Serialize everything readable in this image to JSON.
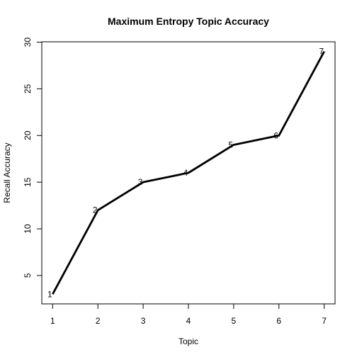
{
  "chart_data": {
    "type": "line",
    "title": "Maximum Entropy Topic Accuracy",
    "xlabel": "Topic",
    "ylabel": "Recall Accuracy",
    "x": [
      1,
      2,
      3,
      4,
      5,
      6,
      7
    ],
    "values": [
      3,
      12,
      15,
      16,
      19,
      20,
      29
    ],
    "point_labels": [
      "1",
      "2",
      "3",
      "4",
      "5",
      "6",
      "7"
    ],
    "xticks": [
      1,
      2,
      3,
      4,
      5,
      6,
      7
    ],
    "yticks": [
      5,
      10,
      15,
      20,
      25,
      30
    ],
    "xlim": [
      0.76,
      7.24
    ],
    "ylim": [
      1.96,
      30.04
    ],
    "line_color": "#000000",
    "grid": false,
    "legend": "none"
  }
}
